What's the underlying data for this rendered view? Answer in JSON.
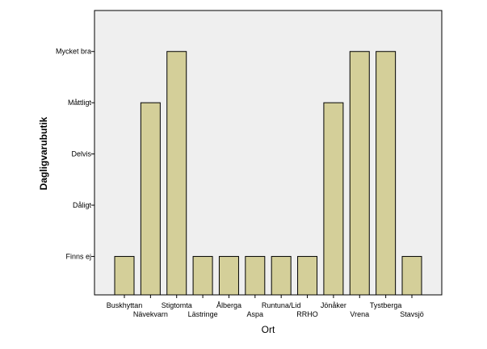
{
  "chart_data": {
    "type": "bar",
    "xlabel": "Ort",
    "ylabel": "Dagligvarubutik",
    "y_levels": [
      "Finns ej",
      "Dåligt",
      "Delvis",
      "Måttligt",
      "Mycket bra"
    ],
    "categories": [
      "Buskhyttan",
      "Nävekvarn",
      "Stigtomta",
      "Lästringe",
      "Ålberga",
      "Aspa",
      "Runtuna/Lid",
      "RRHO",
      "Jönåker",
      "Vrena",
      "Tystberga",
      "Stavsjö"
    ],
    "values": [
      1,
      4,
      5,
      1,
      1,
      1,
      1,
      1,
      4,
      5,
      5,
      1
    ],
    "value_labels": [
      "Finns ej",
      "Måttligt",
      "Mycket bra",
      "Finns ej",
      "Finns ej",
      "Finns ej",
      "Finns ej",
      "Finns ej",
      "Måttligt",
      "Mycket bra",
      "Mycket bra",
      "Finns ej"
    ],
    "ylim": [
      0.25,
      5.8
    ],
    "grid": false,
    "colors": {
      "bar_fill": "#d4cf99",
      "bar_stroke": "#000000",
      "plot_background": "#efefef"
    }
  }
}
